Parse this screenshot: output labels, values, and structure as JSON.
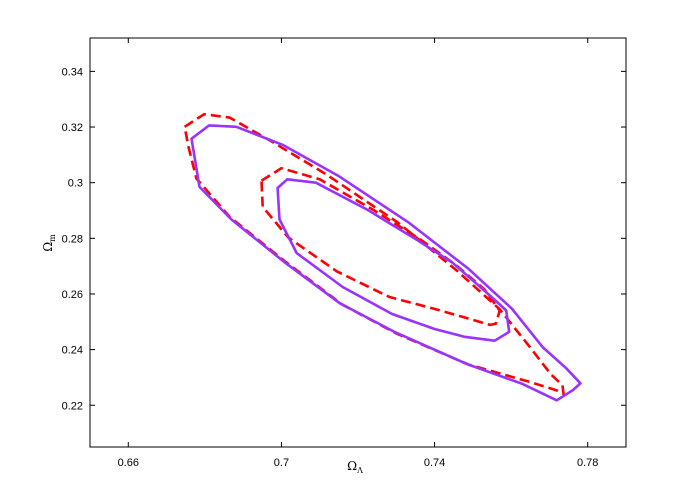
{
  "chart_data": {
    "type": "line",
    "title": "",
    "xlabel": "Ω",
    "xlabel_sub": "Λ",
    "ylabel": "Ω",
    "ylabel_sub": "m",
    "xlim": [
      0.65,
      0.79
    ],
    "ylim": [
      0.205,
      0.352
    ],
    "xticks": [
      0.66,
      0.7,
      0.74,
      0.78
    ],
    "xtick_labels": [
      "0.66",
      "0.7",
      "0.74",
      "0.78"
    ],
    "yticks": [
      0.22,
      0.24,
      0.26,
      0.28,
      0.3,
      0.32,
      0.34
    ],
    "ytick_labels": [
      "0.22",
      "0.24",
      "0.26",
      "0.28",
      "0.3",
      "0.32",
      "0.34"
    ],
    "grid": false,
    "legend": null,
    "series": [
      {
        "style": "dashed",
        "color": "#ff0000",
        "closed": true,
        "points": [
          [
            0.6747,
            0.3201
          ],
          [
            0.6798,
            0.3246
          ],
          [
            0.6865,
            0.3234
          ],
          [
            0.6976,
            0.3147
          ],
          [
            0.7116,
            0.3031
          ],
          [
            0.7304,
            0.2857
          ],
          [
            0.7459,
            0.2683
          ],
          [
            0.757,
            0.2545
          ],
          [
            0.7645,
            0.2416
          ],
          [
            0.7704,
            0.2311
          ],
          [
            0.7734,
            0.2272
          ],
          [
            0.7737,
            0.2241
          ],
          [
            0.7718,
            0.2254
          ],
          [
            0.7643,
            0.2286
          ],
          [
            0.7489,
            0.2346
          ],
          [
            0.7302,
            0.2457
          ],
          [
            0.716,
            0.2561
          ],
          [
            0.701,
            0.2716
          ],
          [
            0.6865,
            0.2877
          ],
          [
            0.6778,
            0.3015
          ],
          [
            0.6758,
            0.3124
          ],
          [
            0.6747,
            0.3201
          ]
        ]
      },
      {
        "style": "solid",
        "color": "#9933ff",
        "closed": true,
        "points": [
          [
            0.6765,
            0.3158
          ],
          [
            0.6811,
            0.3206
          ],
          [
            0.6882,
            0.3201
          ],
          [
            0.7003,
            0.3136
          ],
          [
            0.7148,
            0.3025
          ],
          [
            0.733,
            0.2859
          ],
          [
            0.7489,
            0.269
          ],
          [
            0.7602,
            0.2547
          ],
          [
            0.7683,
            0.2408
          ],
          [
            0.7744,
            0.2333
          ],
          [
            0.7781,
            0.2279
          ],
          [
            0.7761,
            0.2254
          ],
          [
            0.7719,
            0.2218
          ],
          [
            0.7629,
            0.2277
          ],
          [
            0.7487,
            0.2347
          ],
          [
            0.7299,
            0.2461
          ],
          [
            0.7153,
            0.2566
          ],
          [
            0.701,
            0.2712
          ],
          [
            0.6869,
            0.2868
          ],
          [
            0.6786,
            0.2985
          ],
          [
            0.6765,
            0.3158
          ]
        ]
      },
      {
        "style": "dashed",
        "color": "#ff0000",
        "closed": true,
        "points": [
          [
            0.6948,
            0.3007
          ],
          [
            0.7,
            0.3052
          ],
          [
            0.71,
            0.3012
          ],
          [
            0.724,
            0.2902
          ],
          [
            0.7362,
            0.2797
          ],
          [
            0.7454,
            0.2706
          ],
          [
            0.753,
            0.2617
          ],
          [
            0.757,
            0.254
          ],
          [
            0.756,
            0.2493
          ],
          [
            0.7545,
            0.2489
          ],
          [
            0.747,
            0.2519
          ],
          [
            0.7395,
            0.2548
          ],
          [
            0.7282,
            0.2589
          ],
          [
            0.7145,
            0.2681
          ],
          [
            0.7018,
            0.2803
          ],
          [
            0.6951,
            0.2913
          ],
          [
            0.6948,
            0.3007
          ]
        ]
      },
      {
        "style": "solid",
        "color": "#9933ff",
        "closed": true,
        "points": [
          [
            0.699,
            0.2981
          ],
          [
            0.7015,
            0.3012
          ],
          [
            0.709,
            0.3
          ],
          [
            0.7225,
            0.2902
          ],
          [
            0.7353,
            0.2795
          ],
          [
            0.7447,
            0.2712
          ],
          [
            0.7531,
            0.2611
          ],
          [
            0.7587,
            0.2541
          ],
          [
            0.7595,
            0.2464
          ],
          [
            0.7557,
            0.2432
          ],
          [
            0.7478,
            0.2446
          ],
          [
            0.74,
            0.2474
          ],
          [
            0.7289,
            0.2528
          ],
          [
            0.716,
            0.2625
          ],
          [
            0.704,
            0.2747
          ],
          [
            0.6995,
            0.2868
          ],
          [
            0.699,
            0.2981
          ]
        ]
      }
    ]
  }
}
